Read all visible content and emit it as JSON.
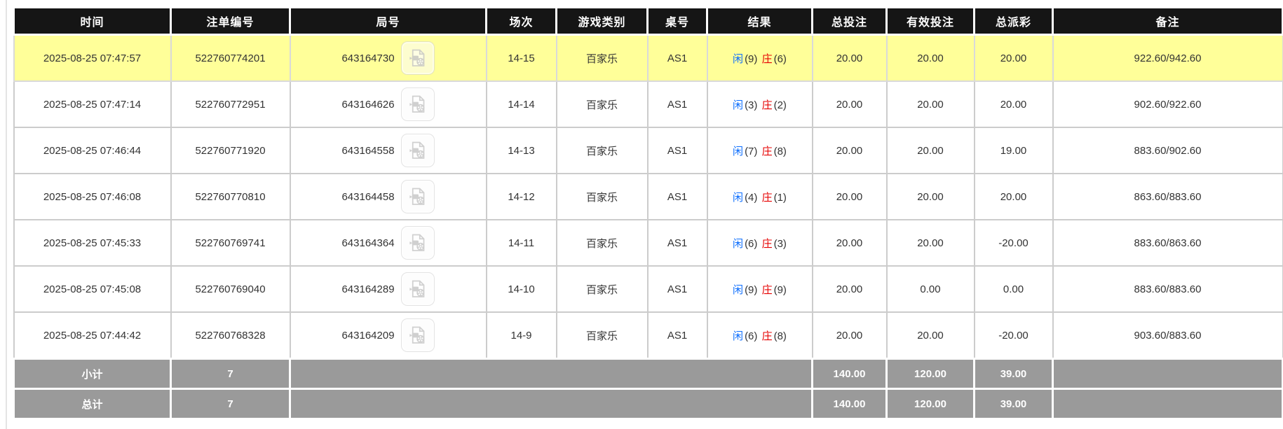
{
  "colors": {
    "header_bg": "#151515",
    "highlight_row": "#ffff99",
    "summary_row_bg": "#9a9a9a",
    "bet_amount_blue": "#0d6efd",
    "banker_red": "#e60000",
    "player_blue": "#0d6efd",
    "negative_payout_red": "#e60000",
    "body_text": "#333333"
  },
  "icons": {
    "round_video": "video-replay-icon"
  },
  "table": {
    "columns": [
      {
        "key": "time",
        "label": "时间"
      },
      {
        "key": "bet_id",
        "label": "注单编号"
      },
      {
        "key": "round_id",
        "label": "局号"
      },
      {
        "key": "session",
        "label": "场次"
      },
      {
        "key": "game_type",
        "label": "游戏类别"
      },
      {
        "key": "table_no",
        "label": "桌号"
      },
      {
        "key": "result",
        "label": "结果"
      },
      {
        "key": "total_bet",
        "label": "总投注"
      },
      {
        "key": "valid_bet",
        "label": "有效投注"
      },
      {
        "key": "payout",
        "label": "总派彩"
      },
      {
        "key": "remark",
        "label": "备注"
      }
    ],
    "rows": [
      {
        "time": "2025-08-25 07:47:57",
        "bet_id": "522760774201",
        "round_id": "643164730",
        "session": "14-15",
        "game_type": "百家乐",
        "table_no": "AS1",
        "player": "闲",
        "player_score": "(9)",
        "banker": "庄",
        "banker_score": "(6)",
        "total_bet": "20.00",
        "valid_bet": "20.00",
        "payout": "20.00",
        "remark": "922.60/942.60",
        "highlighted": true
      },
      {
        "time": "2025-08-25 07:47:14",
        "bet_id": "522760772951",
        "round_id": "643164626",
        "session": "14-14",
        "game_type": "百家乐",
        "table_no": "AS1",
        "player": "闲",
        "player_score": "(3)",
        "banker": "庄",
        "banker_score": "(2)",
        "total_bet": "20.00",
        "valid_bet": "20.00",
        "payout": "20.00",
        "remark": "902.60/922.60",
        "highlighted": false
      },
      {
        "time": "2025-08-25 07:46:44",
        "bet_id": "522760771920",
        "round_id": "643164558",
        "session": "14-13",
        "game_type": "百家乐",
        "table_no": "AS1",
        "player": "闲",
        "player_score": "(7)",
        "banker": "庄",
        "banker_score": "(8)",
        "total_bet": "20.00",
        "valid_bet": "20.00",
        "payout": "19.00",
        "remark": "883.60/902.60",
        "highlighted": false
      },
      {
        "time": "2025-08-25 07:46:08",
        "bet_id": "522760770810",
        "round_id": "643164458",
        "session": "14-12",
        "game_type": "百家乐",
        "table_no": "AS1",
        "player": "闲",
        "player_score": "(4)",
        "banker": "庄",
        "banker_score": "(1)",
        "total_bet": "20.00",
        "valid_bet": "20.00",
        "payout": "20.00",
        "remark": "863.60/883.60",
        "highlighted": false
      },
      {
        "time": "2025-08-25 07:45:33",
        "bet_id": "522760769741",
        "round_id": "643164364",
        "session": "14-11",
        "game_type": "百家乐",
        "table_no": "AS1",
        "player": "闲",
        "player_score": "(6)",
        "banker": "庄",
        "banker_score": "(3)",
        "total_bet": "20.00",
        "valid_bet": "20.00",
        "payout": "-20.00",
        "remark": "883.60/863.60",
        "highlighted": false
      },
      {
        "time": "2025-08-25 07:45:08",
        "bet_id": "522760769040",
        "round_id": "643164289",
        "session": "14-10",
        "game_type": "百家乐",
        "table_no": "AS1",
        "player": "闲",
        "player_score": "(9)",
        "banker": "庄",
        "banker_score": "(9)",
        "total_bet": "20.00",
        "valid_bet": "0.00",
        "payout": "0.00",
        "remark": "883.60/883.60",
        "highlighted": false
      },
      {
        "time": "2025-08-25 07:44:42",
        "bet_id": "522760768328",
        "round_id": "643164209",
        "session": "14-9",
        "game_type": "百家乐",
        "table_no": "AS1",
        "player": "闲",
        "player_score": "(6)",
        "banker": "庄",
        "banker_score": "(8)",
        "total_bet": "20.00",
        "valid_bet": "20.00",
        "payout": "-20.00",
        "remark": "903.60/883.60",
        "highlighted": false
      }
    ],
    "summary_rows": [
      {
        "label": "小计",
        "count": "7",
        "total_bet": "140.00",
        "valid_bet": "120.00",
        "payout": "39.00"
      },
      {
        "label": "总计",
        "count": "7",
        "total_bet": "140.00",
        "valid_bet": "120.00",
        "payout": "39.00"
      }
    ]
  }
}
